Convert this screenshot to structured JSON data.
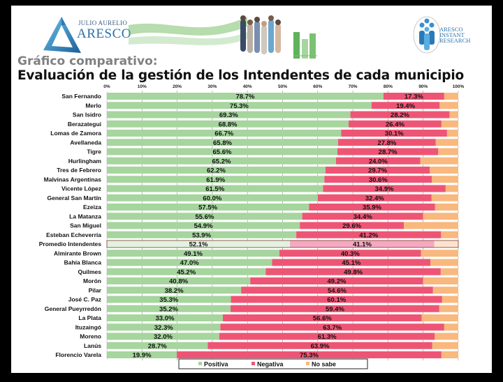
{
  "header": {
    "logo_left": {
      "small_text": "JULIO AURELIO",
      "big_text": "ARESCO"
    },
    "logo_right": {
      "lines": [
        "ARESCO",
        "INSTANT",
        "RESEARCH"
      ]
    },
    "subtitle": "Gráfico comparativo:",
    "title": "Evaluación de la gestión de los Intendentes de cada municipio"
  },
  "chart_data": {
    "type": "bar",
    "orientation": "horizontal",
    "stacked": "percent",
    "title": "Evaluación de la gestión de los Intendentes de cada municipio",
    "xlabel": "",
    "ylabel": "",
    "xlim": [
      0,
      100
    ],
    "x_ticks": [
      "0%",
      "10%",
      "20%",
      "30%",
      "40%",
      "50%",
      "60%",
      "70%",
      "80%",
      "90%",
      "100%"
    ],
    "grid": false,
    "legend_position": "bottom",
    "highlighted_category": "Promedio Intendentes",
    "categories": [
      "San Fernando",
      "Merlo",
      "San Isidro",
      "Berazategui",
      "Lomas de Zamora",
      "Avellaneda",
      "Tigre",
      "Hurlingham",
      "Tres de Febrero",
      "Malvinas Argentinas",
      "Vicente López",
      "General San Martín",
      "Ezeiza",
      "La Matanza",
      "San Miguel",
      "Esteban Echeverría",
      "Promedio Intendentes",
      "Almirante Brown",
      "Bahía Blanca",
      "Quilmes",
      "Morón",
      "Pilar",
      "José C. Paz",
      "General Pueyrredón",
      "La Plata",
      "Ituzaingó",
      "Moreno",
      "Lanús",
      "Florencio Varela"
    ],
    "series": [
      {
        "name": "Positiva",
        "color": "#a6d59e",
        "values": [
          78.7,
          75.3,
          69.3,
          68.8,
          66.7,
          65.8,
          65.6,
          65.2,
          62.2,
          61.9,
          61.5,
          60.0,
          57.5,
          55.6,
          54.9,
          53.9,
          52.1,
          49.1,
          47.0,
          45.2,
          40.8,
          38.2,
          35.3,
          35.2,
          33.0,
          32.3,
          32.0,
          28.7,
          19.9
        ],
        "labels_shown": true
      },
      {
        "name": "Negativa",
        "color": "#ee5575",
        "values": [
          17.3,
          19.4,
          28.2,
          26.4,
          30.1,
          27.8,
          28.7,
          24.0,
          29.7,
          30.6,
          34.9,
          32.4,
          35.9,
          34.4,
          29.6,
          41.2,
          41.1,
          40.3,
          45.1,
          49.8,
          49.2,
          54.6,
          60.1,
          59.4,
          56.6,
          63.7,
          61.3,
          63.9,
          75.3
        ],
        "labels_shown": true
      },
      {
        "name": "No sabe",
        "color": "#f8b87e",
        "values": [
          4.0,
          5.3,
          2.5,
          4.8,
          3.2,
          6.4,
          5.7,
          10.8,
          8.1,
          7.5,
          3.6,
          7.6,
          6.6,
          10.0,
          15.5,
          4.9,
          6.8,
          10.6,
          7.9,
          5.0,
          10.0,
          7.2,
          4.6,
          5.4,
          10.4,
          4.0,
          6.7,
          7.4,
          4.8
        ],
        "labels_shown": false
      }
    ],
    "highlight_colors": {
      "Positiva": "#e3f2e0",
      "Negativa": "#f7a8c0",
      "No sabe": "#fde3cc",
      "outline": "#7a3b2e"
    }
  },
  "legend": {
    "items": [
      {
        "label": "Positiva",
        "color": "#a6d59e"
      },
      {
        "label": "Negativa",
        "color": "#ee5575"
      },
      {
        "label": "No sabe",
        "color": "#f8b87e"
      }
    ]
  }
}
